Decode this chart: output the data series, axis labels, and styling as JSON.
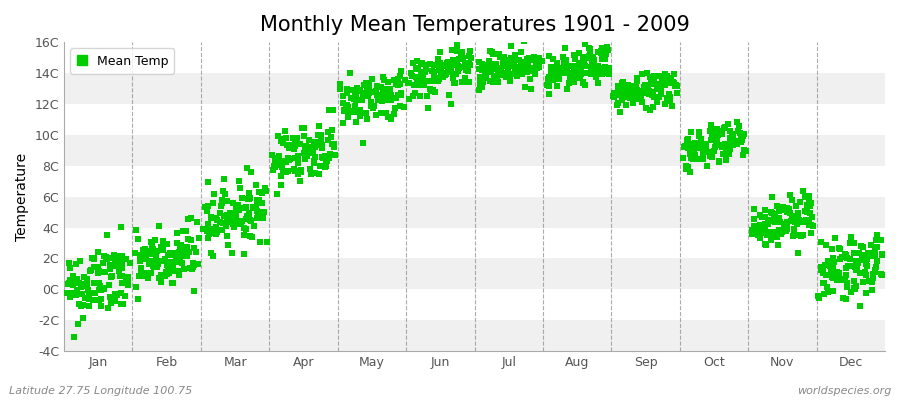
{
  "title": "Monthly Mean Temperatures 1901 - 2009",
  "ylabel": "Temperature",
  "footer_left": "Latitude 27.75 Longitude 100.75",
  "footer_right": "worldspecies.org",
  "ylim": [
    -4,
    16
  ],
  "ytick_labels": [
    "-4C",
    "-2C",
    "0C",
    "2C",
    "4C",
    "6C",
    "8C",
    "10C",
    "12C",
    "14C",
    "16C"
  ],
  "ytick_values": [
    -4,
    -2,
    0,
    2,
    4,
    6,
    8,
    10,
    12,
    14,
    16
  ],
  "months": [
    "Jan",
    "Feb",
    "Mar",
    "Apr",
    "May",
    "Jun",
    "Jul",
    "Aug",
    "Sep",
    "Oct",
    "Nov",
    "Dec"
  ],
  "mean_temps": [
    0.0,
    1.5,
    4.5,
    8.5,
    12.0,
    13.5,
    14.0,
    13.8,
    12.5,
    9.0,
    4.0,
    1.0
  ],
  "std_temps": [
    1.2,
    1.1,
    1.0,
    0.9,
    0.8,
    0.7,
    0.6,
    0.6,
    0.6,
    0.7,
    0.8,
    1.0
  ],
  "trend_per_century": [
    0.8,
    0.8,
    0.8,
    0.8,
    0.8,
    0.8,
    0.8,
    0.8,
    0.8,
    0.8,
    0.8,
    0.8
  ],
  "n_years": 109,
  "start_year": 1901,
  "marker_color": "#00cc00",
  "marker_size": 18,
  "bg_color": "#ffffff",
  "band_colors": [
    "#f0f0f0",
    "#ffffff"
  ],
  "dashed_line_color": "#888888",
  "title_fontsize": 15,
  "axis_fontsize": 10,
  "tick_fontsize": 9
}
